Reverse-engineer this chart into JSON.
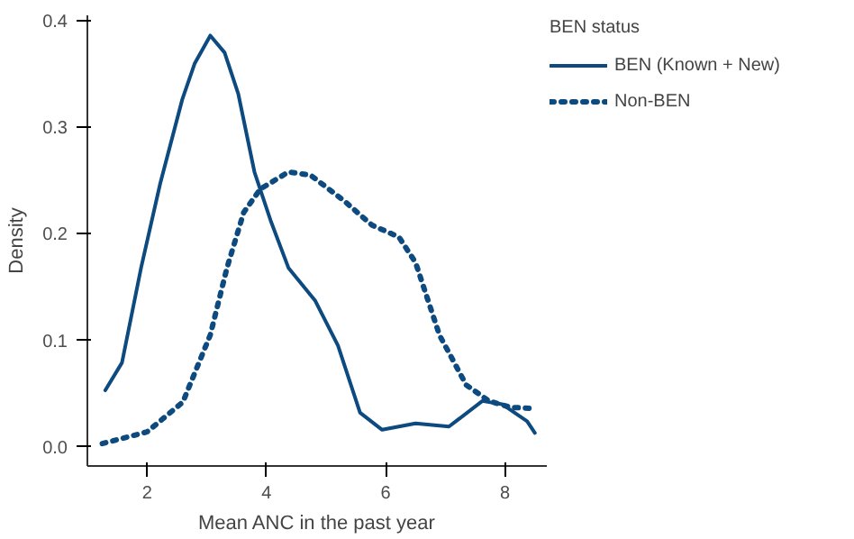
{
  "chart_data": {
    "type": "line",
    "xlabel": "Mean ANC in the past year",
    "ylabel": "Density",
    "legend_title": "BEN status",
    "legend": "right",
    "grid": false,
    "xlim": [
      1.0,
      8.7
    ],
    "ylim": [
      -0.018,
      0.405
    ],
    "xticks": [
      2,
      4,
      6,
      8
    ],
    "yticks": [
      {
        "value": 0,
        "label": "0.0"
      },
      {
        "value": 0.1,
        "label": "0.1"
      },
      {
        "value": 0.2,
        "label": "0.2"
      },
      {
        "value": 0.3,
        "label": "0.3"
      },
      {
        "value": 0.4,
        "label": "0.4"
      }
    ],
    "series": [
      {
        "name": "BEN (Known + New)",
        "color": "#0d4a80",
        "line_style": "solid",
        "x": [
          1.3,
          1.58,
          1.9,
          2.22,
          2.59,
          2.8,
          3.06,
          3.3,
          3.53,
          3.8,
          4.08,
          4.37,
          4.82,
          5.2,
          5.57,
          5.94,
          6.5,
          7.06,
          7.62,
          7.95,
          8.37,
          8.5
        ],
        "values": [
          0.053,
          0.079,
          0.168,
          0.247,
          0.326,
          0.36,
          0.386,
          0.37,
          0.331,
          0.258,
          0.211,
          0.168,
          0.137,
          0.095,
          0.032,
          0.016,
          0.022,
          0.019,
          0.043,
          0.04,
          0.024,
          0.013
        ]
      },
      {
        "name": "Non-BEN",
        "color": "#0d4a80",
        "line_style": "dotted",
        "x": [
          1.25,
          2.0,
          2.6,
          3.06,
          3.34,
          3.62,
          3.9,
          4.37,
          4.74,
          5.3,
          5.77,
          6.22,
          6.5,
          6.9,
          7.35,
          7.73,
          8.1,
          8.5
        ],
        "values": [
          0.003,
          0.014,
          0.042,
          0.105,
          0.168,
          0.22,
          0.242,
          0.258,
          0.255,
          0.231,
          0.208,
          0.197,
          0.173,
          0.105,
          0.058,
          0.043,
          0.037,
          0.036
        ]
      }
    ]
  }
}
